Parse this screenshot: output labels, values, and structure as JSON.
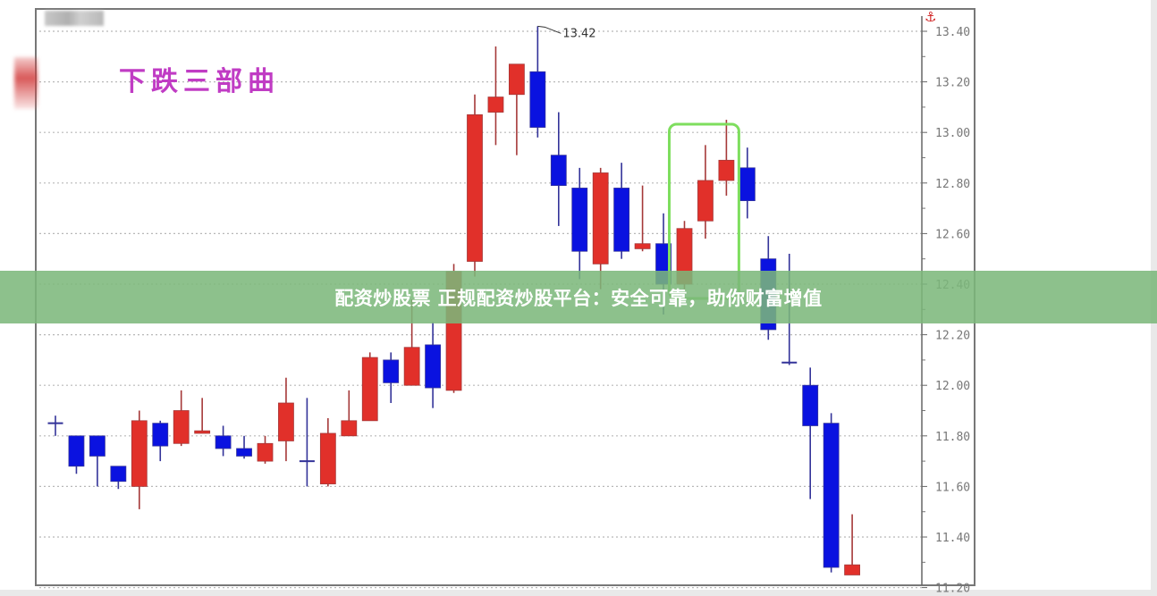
{
  "banner": {
    "text": "配资炒股票 正规配资炒股平台：安全可靠，助你财富增值"
  },
  "colors": {
    "up": "#e1302a",
    "down": "#0a12e0",
    "highlight_box": "#7ede5e",
    "title": "#c03cc4",
    "banner": "#7cb87a"
  },
  "icons": {
    "top_right": "anchor-icon"
  },
  "chart_data": {
    "type": "candlestick",
    "title": "下跌三部曲",
    "ylim": [
      11.2,
      13.4
    ],
    "yticks": [
      "13.40",
      "13.20",
      "13.00",
      "12.80",
      "12.60",
      "12.40",
      "12.20",
      "12.00",
      "11.80",
      "11.60",
      "11.40",
      "11.20"
    ],
    "grid": true,
    "axis_position": "right",
    "annotations": [
      {
        "text": "13.42",
        "candle_index": 23,
        "value": 13.42
      }
    ],
    "highlight": {
      "from_index": 30,
      "to_index": 32
    },
    "candles": [
      {
        "o": 11.85,
        "h": 11.88,
        "l": 11.8,
        "c": 11.85
      },
      {
        "o": 11.8,
        "h": 11.8,
        "l": 11.65,
        "c": 11.68
      },
      {
        "o": 11.8,
        "h": 11.8,
        "l": 11.6,
        "c": 11.72
      },
      {
        "o": 11.68,
        "h": 11.68,
        "l": 11.59,
        "c": 11.62
      },
      {
        "o": 11.6,
        "h": 11.9,
        "l": 11.51,
        "c": 11.86
      },
      {
        "o": 11.85,
        "h": 11.86,
        "l": 11.7,
        "c": 11.76
      },
      {
        "o": 11.77,
        "h": 11.98,
        "l": 11.76,
        "c": 11.9
      },
      {
        "o": 11.81,
        "h": 11.95,
        "l": 11.81,
        "c": 11.82
      },
      {
        "o": 11.8,
        "h": 11.84,
        "l": 11.72,
        "c": 11.75
      },
      {
        "o": 11.75,
        "h": 11.8,
        "l": 11.71,
        "c": 11.72
      },
      {
        "o": 11.7,
        "h": 11.8,
        "l": 11.69,
        "c": 11.77
      },
      {
        "o": 11.78,
        "h": 12.03,
        "l": 11.7,
        "c": 11.93
      },
      {
        "o": 11.7,
        "h": 11.95,
        "l": 11.6,
        "c": 11.7
      },
      {
        "o": 11.61,
        "h": 11.87,
        "l": 11.6,
        "c": 11.81
      },
      {
        "o": 11.8,
        "h": 11.98,
        "l": 11.8,
        "c": 11.86
      },
      {
        "o": 11.86,
        "h": 12.13,
        "l": 11.86,
        "c": 12.11
      },
      {
        "o": 12.1,
        "h": 12.13,
        "l": 11.93,
        "c": 12.01
      },
      {
        "o": 12.0,
        "h": 12.34,
        "l": 12.0,
        "c": 12.15
      },
      {
        "o": 12.16,
        "h": 12.25,
        "l": 11.91,
        "c": 11.99
      },
      {
        "o": 11.98,
        "h": 12.48,
        "l": 11.97,
        "c": 12.45
      },
      {
        "o": 12.49,
        "h": 13.15,
        "l": 12.43,
        "c": 13.07
      },
      {
        "o": 13.08,
        "h": 13.34,
        "l": 12.95,
        "c": 13.14
      },
      {
        "o": 13.15,
        "h": 13.27,
        "l": 12.91,
        "c": 13.27
      },
      {
        "o": 13.24,
        "h": 13.42,
        "l": 12.98,
        "c": 13.02
      },
      {
        "o": 12.91,
        "h": 13.08,
        "l": 12.63,
        "c": 12.79
      },
      {
        "o": 12.78,
        "h": 12.86,
        "l": 12.42,
        "c": 12.53
      },
      {
        "o": 12.48,
        "h": 12.86,
        "l": 12.38,
        "c": 12.84
      },
      {
        "o": 12.78,
        "h": 12.88,
        "l": 12.5,
        "c": 12.53
      },
      {
        "o": 12.54,
        "h": 12.79,
        "l": 12.53,
        "c": 12.56
      },
      {
        "o": 12.56,
        "h": 12.68,
        "l": 12.28,
        "c": 12.4
      },
      {
        "o": 12.4,
        "h": 12.65,
        "l": 12.38,
        "c": 12.62
      },
      {
        "o": 12.65,
        "h": 12.95,
        "l": 12.58,
        "c": 12.81
      },
      {
        "o": 12.81,
        "h": 13.05,
        "l": 12.75,
        "c": 12.89
      },
      {
        "o": 12.86,
        "h": 12.94,
        "l": 12.66,
        "c": 12.73
      },
      {
        "o": 12.5,
        "h": 12.59,
        "l": 12.18,
        "c": 12.22
      },
      {
        "o": 12.09,
        "h": 12.52,
        "l": 12.08,
        "c": 12.09
      },
      {
        "o": 12.0,
        "h": 12.07,
        "l": 11.55,
        "c": 11.84
      },
      {
        "o": 11.85,
        "h": 11.89,
        "l": 11.26,
        "c": 11.28
      },
      {
        "o": 11.25,
        "h": 11.49,
        "l": 11.25,
        "c": 11.29
      }
    ]
  }
}
